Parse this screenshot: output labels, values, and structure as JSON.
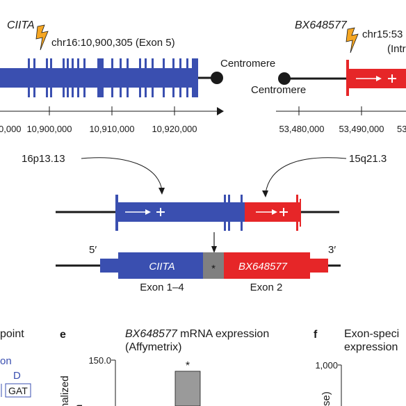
{
  "colors": {
    "ciita": "#3a4fb0",
    "bx": "#e62628",
    "breakpoint": "#f5a623",
    "junction": "#808080",
    "bar": "#9a9a9a",
    "line": "#1a1a1a"
  },
  "top_left": {
    "gene": "CIITA",
    "breakpoint_label": "chr16:10,900,305 (Exon 5)",
    "centromere_label": "Centromere",
    "ticks": [
      "0,000",
      "10,900,000",
      "10,910,000",
      "10,920,000"
    ]
  },
  "top_right": {
    "gene": "BX648577",
    "breakpoint_label": "chr15:53",
    "breakpoint_sub": "(Intr",
    "centromere_label": "Centromere",
    "ticks": [
      "53,480,000",
      "53,490,000",
      "53"
    ]
  },
  "middle": {
    "band_left": "16p13.13",
    "band_right": "15q21.3"
  },
  "fusion": {
    "five_prime": "5′",
    "three_prime": "3′",
    "left_label": "CIITA",
    "junction_mark": "*",
    "right_label": "BX648577",
    "exon_left": "Exon 1–4",
    "exon_right": "Exon 2"
  },
  "panel_d": {
    "title_fragment": "point",
    "line2": "on",
    "letter": "D",
    "codon": "GAT"
  },
  "panel_e": {
    "letter": "e",
    "title_italic": "BX648577",
    "title_rest": " mRNA expression",
    "subtitle": "(Affymetrix)",
    "ylabel": "nalized",
    "ylabel2": "n",
    "tick": "150.0",
    "asterisk": "*"
  },
  "panel_f": {
    "letter": "f",
    "title1": "Exon-speci",
    "title2": "expression",
    "tick": "1,000",
    "ylabel": "se)"
  }
}
